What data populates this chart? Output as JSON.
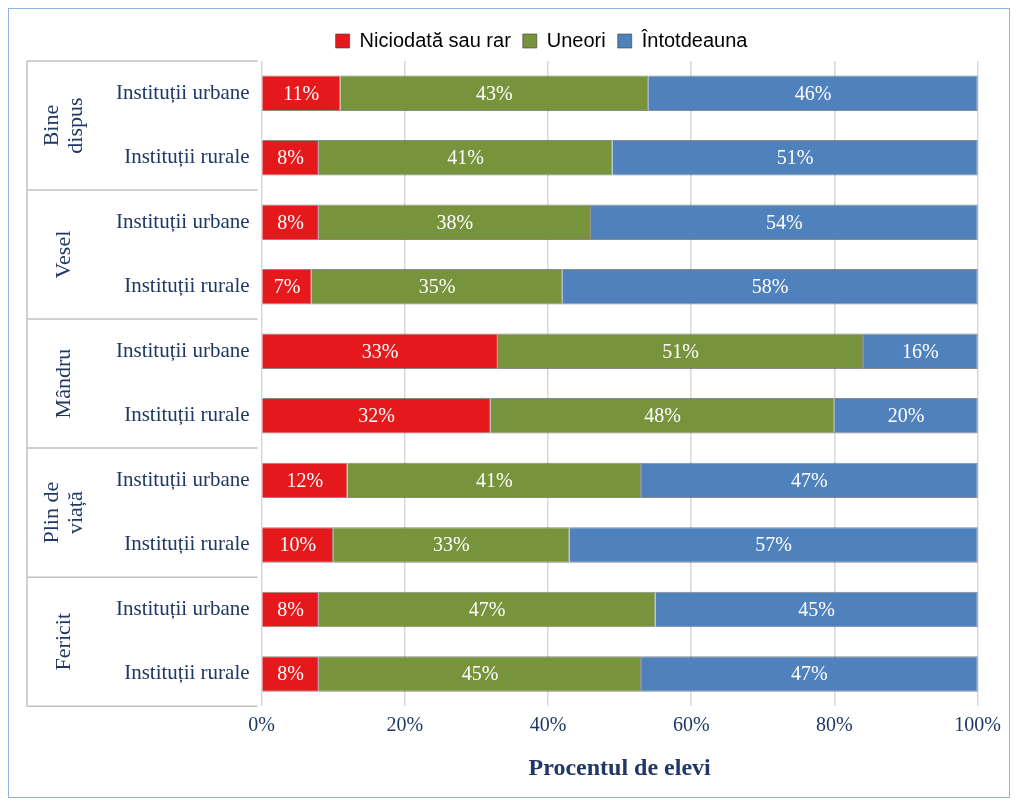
{
  "chart_data": {
    "type": "bar",
    "orientation": "horizontal",
    "stacked": true,
    "xlabel": "Procentul de elevi",
    "categories": [
      "Instituții urbane",
      "Instituții rurale",
      "Instituții urbane",
      "Instituții rurale",
      "Instituții urbane",
      "Instituții rurale",
      "Instituții urbane",
      "Instituții rurale",
      "Instituții urbane",
      "Instituții rurale"
    ],
    "annotations": [
      "Bine dispus",
      "Vesel",
      "Mândru",
      "Plin de viață",
      "Fericit"
    ],
    "series": [
      {
        "name": "Niciodată sau rar",
        "color": "#e5191b",
        "values": [
          11,
          8,
          8,
          7,
          33,
          32,
          12,
          10,
          8,
          8
        ],
        "value_labels": [
          "11%",
          "8%",
          "8%",
          "7%",
          "33%",
          "32%",
          "12%",
          "10%",
          "8%",
          "8%"
        ]
      },
      {
        "name": "Uneori",
        "color": "#77933c",
        "values": [
          43,
          41,
          38,
          35,
          51,
          48,
          41,
          33,
          47,
          45
        ],
        "value_labels": [
          "43%",
          "41%",
          "38%",
          "35%",
          "51%",
          "48%",
          "41%",
          "33%",
          "47%",
          "45%"
        ]
      },
      {
        "name": "Întotdeauna",
        "color": "#4f81bd",
        "values": [
          46,
          51,
          54,
          58,
          16,
          20,
          47,
          57,
          45,
          47
        ],
        "value_labels": [
          "46%",
          "51%",
          "54%",
          "58%",
          "16%",
          "20%",
          "47%",
          "57%",
          "45%",
          "47%"
        ]
      }
    ],
    "xlim": [
      0,
      100
    ],
    "xticks": [
      {
        "value": 0,
        "label": "0%"
      },
      {
        "value": 20,
        "label": "20%"
      },
      {
        "value": 40,
        "label": "40%"
      },
      {
        "value": 60,
        "label": "60%"
      },
      {
        "value": 80,
        "label": "80%"
      },
      {
        "value": 100,
        "label": "100%"
      }
    ],
    "grid": "x",
    "legend": "top"
  }
}
